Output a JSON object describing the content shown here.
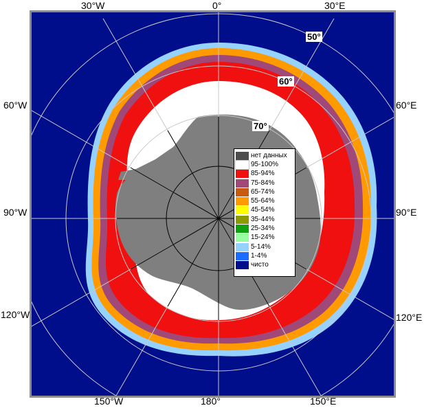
{
  "map": {
    "longitude_labels": {
      "top": [
        "30°W",
        "0°",
        "30°E"
      ],
      "left": [
        "60°W",
        "90°W",
        "120°W"
      ],
      "right": [
        "60°E",
        "90°E",
        "120°E"
      ],
      "bottom": [
        "150°W",
        "180°",
        "150°E"
      ]
    },
    "latitude_labels": [
      "50°",
      "60°",
      "70°"
    ],
    "colors": {
      "ocean": "#000e8c",
      "land": "#7f7f7f",
      "frame": "#8c8c8c",
      "grid": "#c8c8c8"
    }
  },
  "legend": {
    "items": [
      {
        "label": "нет данных",
        "color": "#4d4d4d"
      },
      {
        "label": "95-100%",
        "color": "#ffffff"
      },
      {
        "label": "85-94%",
        "color": "#f01010"
      },
      {
        "label": "75-84%",
        "color": "#a04878"
      },
      {
        "label": "65-74%",
        "color": "#c85a10"
      },
      {
        "label": "55-64%",
        "color": "#ff9a00"
      },
      {
        "label": "45-54%",
        "color": "#ffff00"
      },
      {
        "label": "35-44%",
        "color": "#8c9a00"
      },
      {
        "label": "25-34%",
        "color": "#10a010"
      },
      {
        "label": "15-24%",
        "color": "#96ffa0"
      },
      {
        "label": "5-14%",
        "color": "#96d2ff"
      },
      {
        "label": "1-4%",
        "color": "#1a6cff"
      },
      {
        "label": "чисто",
        "color": "#000e8c"
      }
    ]
  }
}
